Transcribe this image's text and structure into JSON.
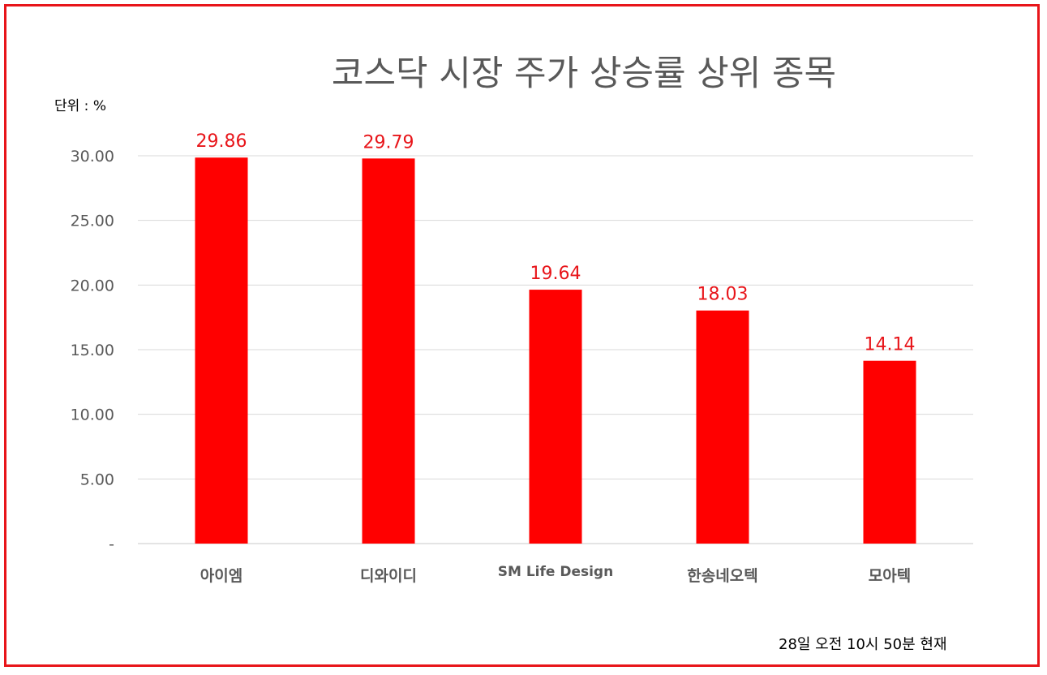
{
  "chart_data": {
    "type": "bar",
    "title": "코스닥 시장 주가 상승률 상위 종목",
    "unit_label": "단위 : %",
    "footnote": "28일  오전 10시 50분 현재",
    "categories": [
      "아이엠",
      "디와이디",
      "SM Life Design",
      "한송네오텍",
      "모아텍"
    ],
    "values": [
      29.86,
      29.79,
      19.64,
      18.03,
      14.14
    ],
    "data_labels": [
      "29.86",
      "29.79",
      "19.64",
      "18.03",
      "14.14"
    ],
    "y_ticks": [
      0,
      5,
      10,
      15,
      20,
      25,
      30
    ],
    "y_tick_labels": [
      "-",
      "5.00",
      "10.00",
      "15.00",
      "20.00",
      "25.00",
      "30.00"
    ],
    "ylim": [
      0,
      30
    ],
    "grid": true,
    "bar_color": "#ff0000",
    "label_color": "#e8151a",
    "border_color": "#e8151a"
  }
}
